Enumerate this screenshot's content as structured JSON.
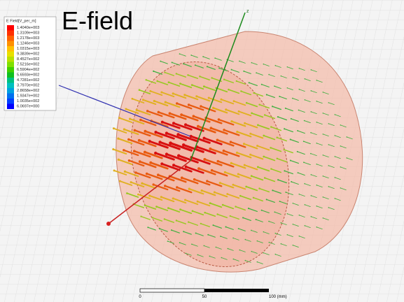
{
  "legend": {
    "title": "E Field[V_per_m]",
    "levels": [
      "1.4040e+003",
      "1.3109e+003",
      "1.2178e+003",
      "1.1246e+003",
      "1.0315e+003",
      "9.3839e+002",
      "8.4527e+002",
      "7.5216e+002",
      "6.5904e+002",
      "5.6593e+002",
      "4.7281e+002",
      "3.7970e+002",
      "2.8658e+002",
      "1.9347e+002",
      "1.0035e+002",
      "6.0697e+000"
    ]
  },
  "label": "E-field",
  "axis_label": "z",
  "scale_bar": {
    "labels": [
      "0",
      "50",
      "100 (mm)"
    ]
  }
}
